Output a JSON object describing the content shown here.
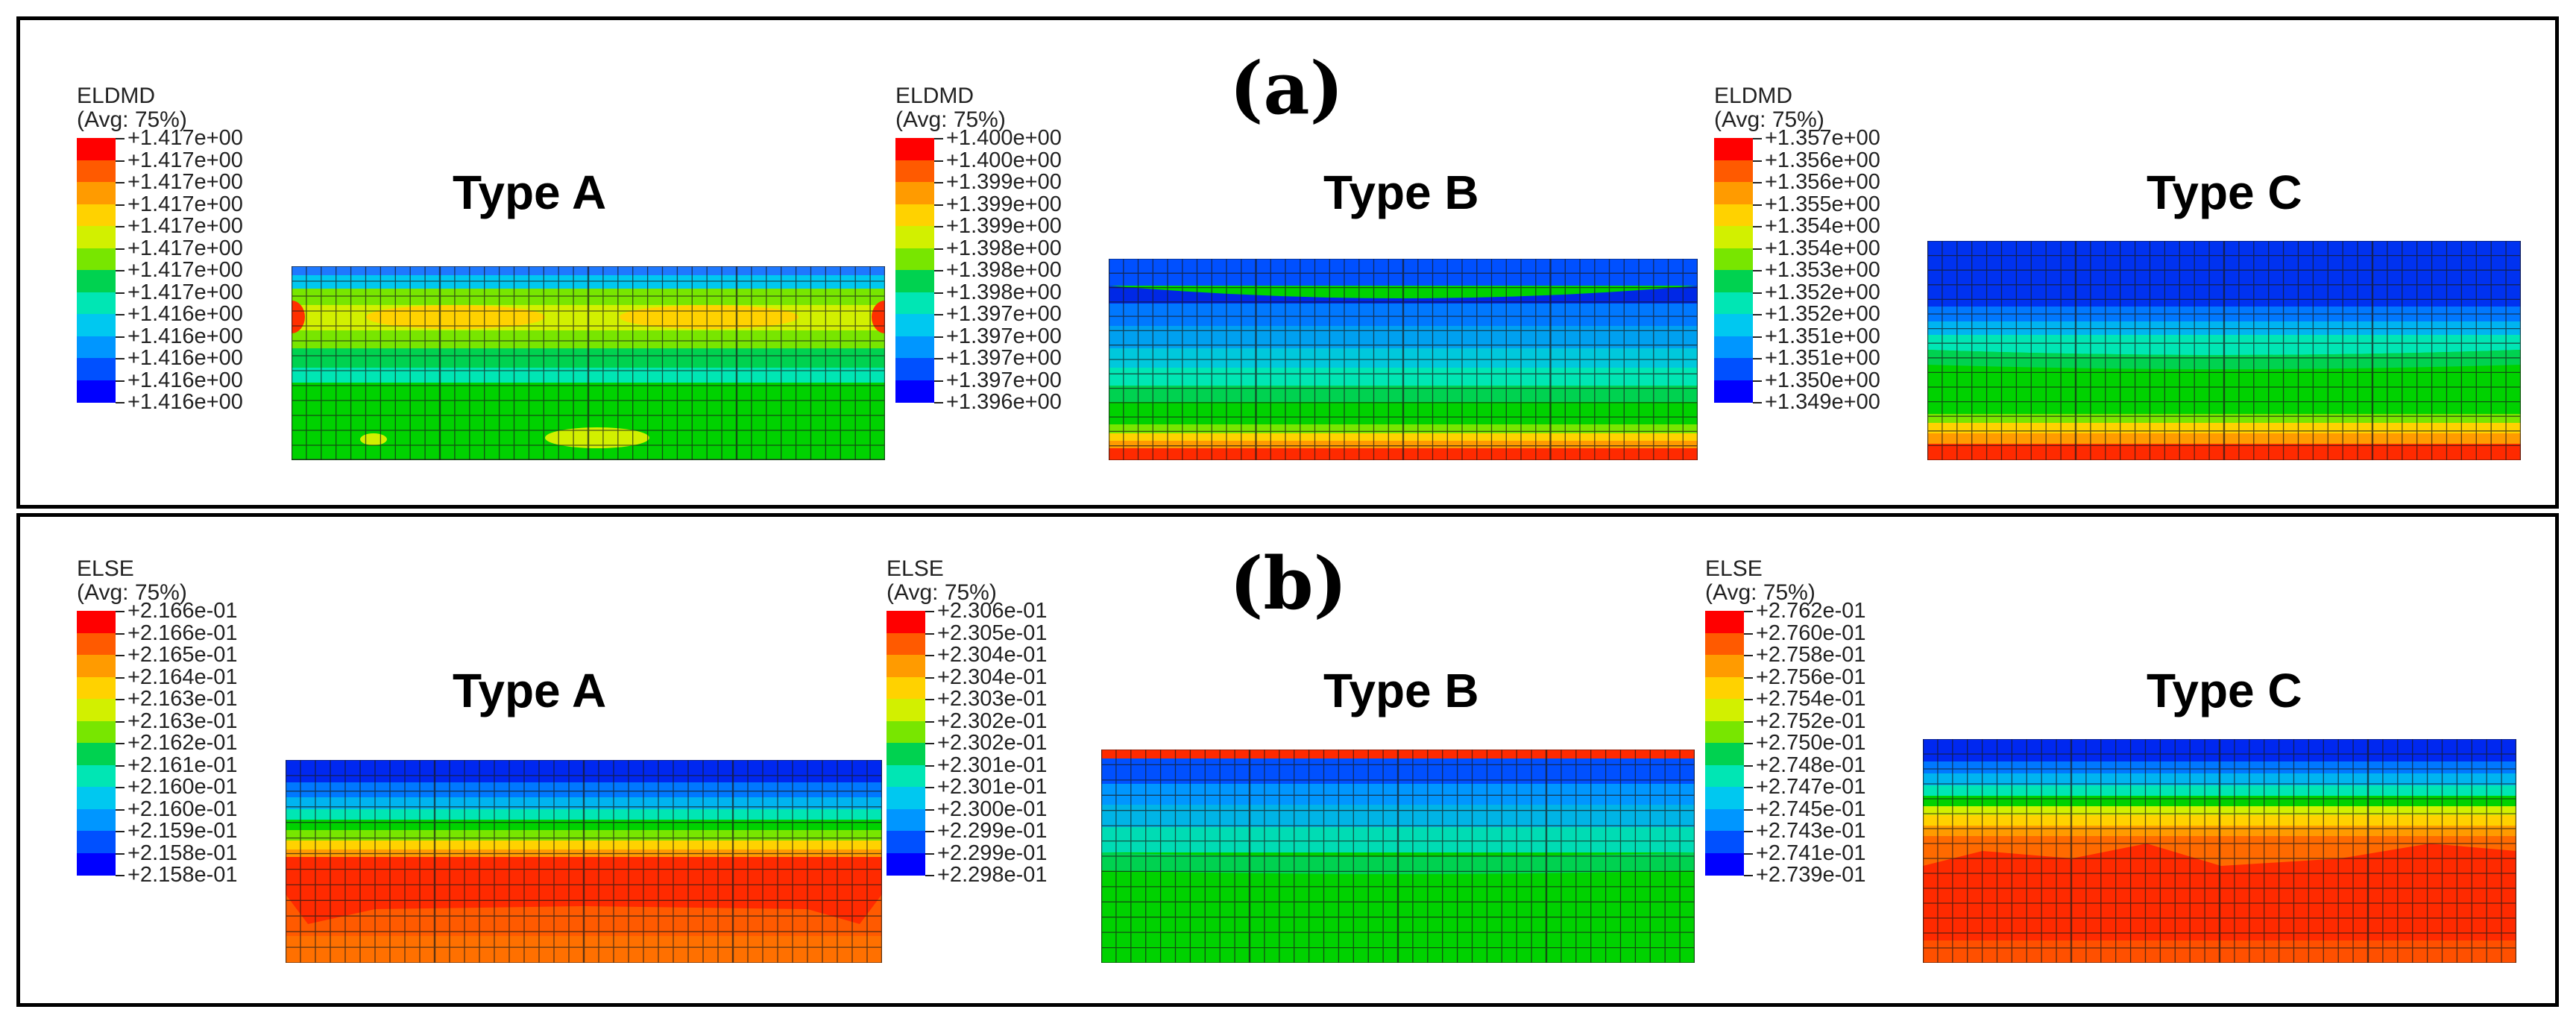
{
  "panels": [
    {
      "label": "(a)",
      "legends": [
        {
          "variable": "ELDMD",
          "avg": "(Avg: 75%)",
          "values": [
            "+1.417e+00",
            "+1.417e+00",
            "+1.417e+00",
            "+1.417e+00",
            "+1.417e+00",
            "+1.417e+00",
            "+1.417e+00",
            "+1.417e+00",
            "+1.416e+00",
            "+1.416e+00",
            "+1.416e+00",
            "+1.416e+00",
            "+1.416e+00"
          ],
          "title": "Type A"
        },
        {
          "variable": "ELDMD",
          "avg": "(Avg: 75%)",
          "values": [
            "+1.400e+00",
            "+1.400e+00",
            "+1.399e+00",
            "+1.399e+00",
            "+1.399e+00",
            "+1.398e+00",
            "+1.398e+00",
            "+1.398e+00",
            "+1.397e+00",
            "+1.397e+00",
            "+1.397e+00",
            "+1.397e+00",
            "+1.396e+00"
          ],
          "title": "Type B"
        },
        {
          "variable": "ELDMD",
          "avg": "(Avg: 75%)",
          "values": [
            "+1.357e+00",
            "+1.356e+00",
            "+1.356e+00",
            "+1.355e+00",
            "+1.354e+00",
            "+1.354e+00",
            "+1.353e+00",
            "+1.352e+00",
            "+1.352e+00",
            "+1.351e+00",
            "+1.351e+00",
            "+1.350e+00",
            "+1.349e+00"
          ],
          "title": "Type C"
        }
      ]
    },
    {
      "label": "(b)",
      "legends": [
        {
          "variable": "ELSE",
          "avg": "(Avg: 75%)",
          "values": [
            "+2.166e-01",
            "+2.166e-01",
            "+2.165e-01",
            "+2.164e-01",
            "+2.163e-01",
            "+2.163e-01",
            "+2.162e-01",
            "+2.161e-01",
            "+2.160e-01",
            "+2.160e-01",
            "+2.159e-01",
            "+2.158e-01",
            "+2.158e-01"
          ],
          "title": "Type A"
        },
        {
          "variable": "ELSE",
          "avg": "(Avg: 75%)",
          "values": [
            "+2.306e-01",
            "+2.305e-01",
            "+2.304e-01",
            "+2.304e-01",
            "+2.303e-01",
            "+2.302e-01",
            "+2.302e-01",
            "+2.301e-01",
            "+2.301e-01",
            "+2.300e-01",
            "+2.299e-01",
            "+2.299e-01",
            "+2.298e-01"
          ],
          "title": "Type B"
        },
        {
          "variable": "ELSE",
          "avg": "(Avg: 75%)",
          "values": [
            "+2.762e-01",
            "+2.760e-01",
            "+2.758e-01",
            "+2.756e-01",
            "+2.754e-01",
            "+2.752e-01",
            "+2.750e-01",
            "+2.748e-01",
            "+2.747e-01",
            "+2.745e-01",
            "+2.743e-01",
            "+2.741e-01",
            "+2.739e-01"
          ],
          "title": "Type C"
        }
      ]
    }
  ],
  "colormap": [
    "#ff0000",
    "#ff5a00",
    "#ff9b00",
    "#ffd200",
    "#d2f000",
    "#78e600",
    "#00d200",
    "#00d250",
    "#00e6b4",
    "#00c8f0",
    "#0096ff",
    "#0050ff",
    "#0000ff"
  ]
}
